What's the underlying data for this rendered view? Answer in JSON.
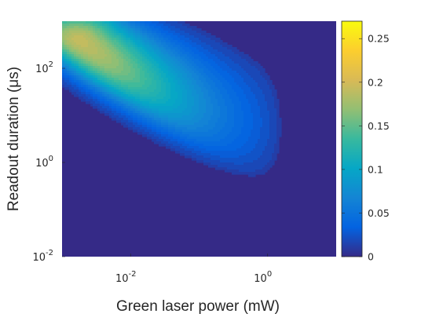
{
  "chart_data": {
    "type": "heatmap",
    "xlabel": "Green laser power (mW)",
    "ylabel": "Readout duration (μs)",
    "x_scale": "log",
    "y_scale": "log",
    "xlim": [
      0.001,
      10
    ],
    "ylim": [
      0.01,
      1000
    ],
    "x_ticks": [
      {
        "value": 0.01,
        "base": "10",
        "exp": "-2"
      },
      {
        "value": 1,
        "base": "10",
        "exp": "0"
      }
    ],
    "y_ticks": [
      {
        "value": 0.01,
        "base": "10",
        "exp": "-2"
      },
      {
        "value": 1,
        "base": "10",
        "exp": "0"
      },
      {
        "value": 100,
        "base": "10",
        "exp": "2"
      }
    ],
    "colorbar": {
      "range": [
        0,
        0.27
      ],
      "ticks": [
        "0",
        "0.05",
        "0.1",
        "0.15",
        "0.2",
        "0.25"
      ],
      "tick_values": [
        0,
        0.05,
        0.1,
        0.15,
        0.2,
        0.25
      ],
      "colormap": "parula"
    },
    "peak": {
      "power_mW": 0.0013,
      "duration_us": 300,
      "value": 0.22
    },
    "grid": false
  }
}
